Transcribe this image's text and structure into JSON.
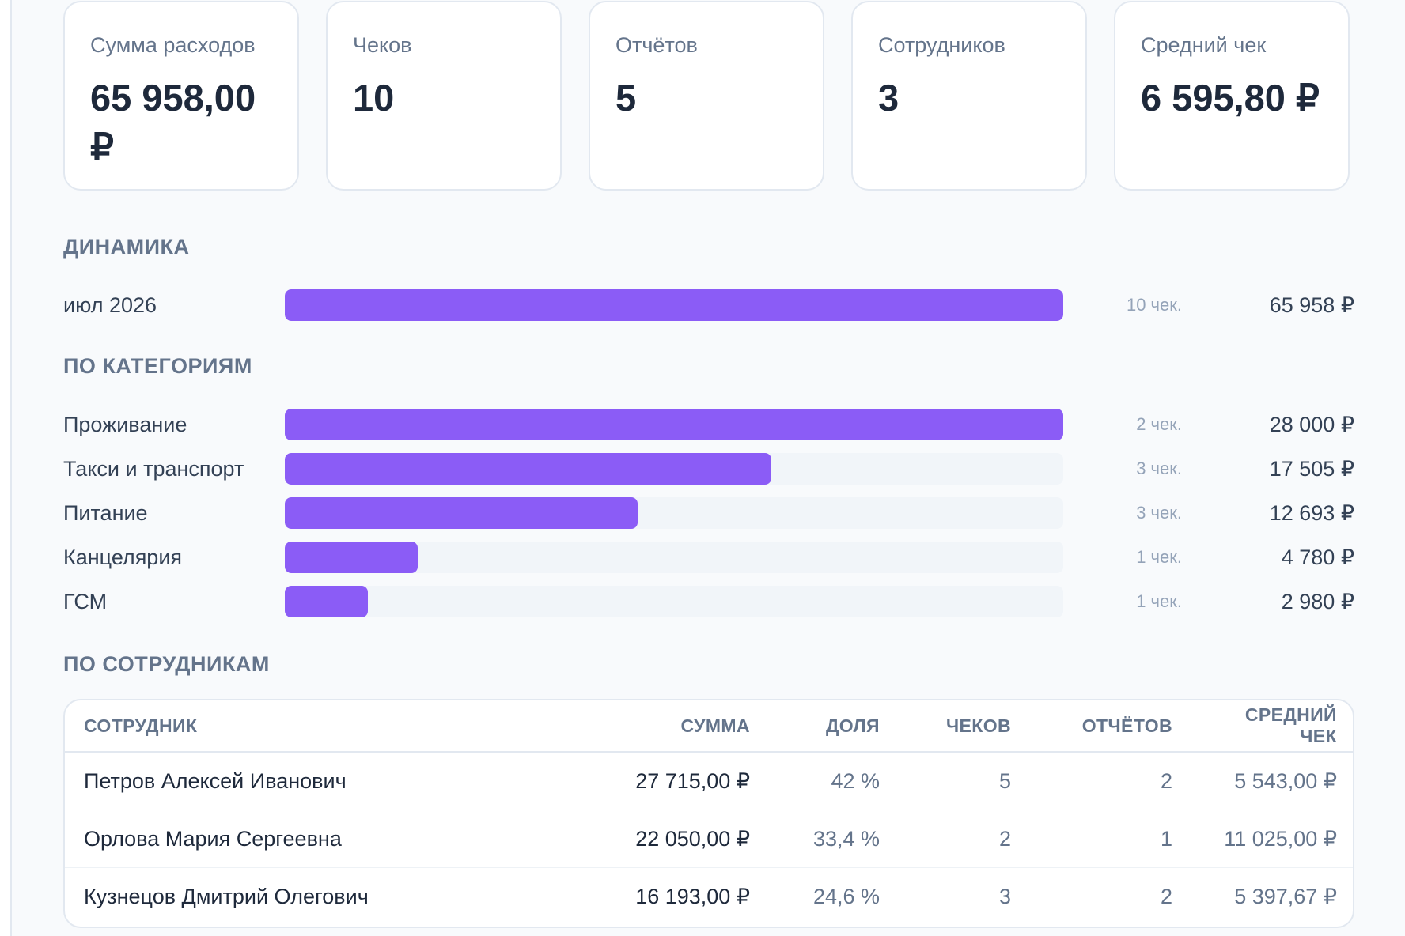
{
  "kpis": [
    {
      "label": "Сумма расходов",
      "value": "65 958,00 ₽"
    },
    {
      "label": "Чеков",
      "value": "10"
    },
    {
      "label": "Отчётов",
      "value": "5"
    },
    {
      "label": "Сотрудников",
      "value": "3"
    },
    {
      "label": "Средний чек",
      "value": "6 595,80 ₽"
    }
  ],
  "dynamics": {
    "title": "ДИНАМИКА",
    "rows": [
      {
        "label": "июл 2026",
        "count": "10 чек.",
        "amount": "65 958 ₽",
        "share": 1.0
      }
    ]
  },
  "categories": {
    "title": "ПО КАТЕГОРИЯМ",
    "rows": [
      {
        "label": "Проживание",
        "count": "2 чек.",
        "amount": "28 000 ₽",
        "share": 1.0
      },
      {
        "label": "Такси и транспорт",
        "count": "3 чек.",
        "amount": "17 505 ₽",
        "share": 0.6252
      },
      {
        "label": "Питание",
        "count": "3 чек.",
        "amount": "12 693 ₽",
        "share": 0.4533
      },
      {
        "label": "Канцелярия",
        "count": "1 чек.",
        "amount": "4 780 ₽",
        "share": 0.1707
      },
      {
        "label": "ГСМ",
        "count": "1 чек.",
        "amount": "2 980 ₽",
        "share": 0.1064
      }
    ]
  },
  "employees": {
    "title": "ПО СОТРУДНИКАМ",
    "columns": [
      "СОТРУДНИК",
      "СУММА",
      "ДОЛЯ",
      "ЧЕКОВ",
      "ОТЧЁТОВ",
      "СРЕДНИЙ ЧЕК"
    ],
    "rows": [
      [
        "Петров Алексей Иванович",
        "27 715,00 ₽",
        "42 %",
        "5",
        "2",
        "5 543,00 ₽"
      ],
      [
        "Орлова Мария Сергеевна",
        "22 050,00 ₽",
        "33,4 %",
        "2",
        "1",
        "11 025,00 ₽"
      ],
      [
        "Кузнецов Дмитрий Олегович",
        "16 193,00 ₽",
        "24,6 %",
        "3",
        "2",
        "5 397,67 ₽"
      ]
    ]
  },
  "colors": {
    "bar_fill": "#8b5cf6",
    "bar_track": "#f1f5f9"
  }
}
